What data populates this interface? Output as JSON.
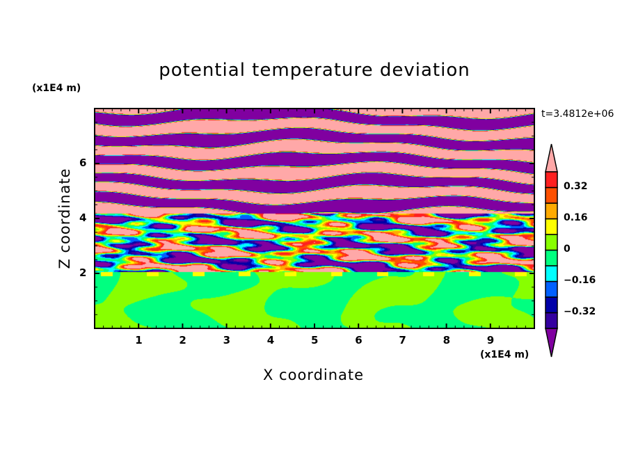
{
  "chart_data": {
    "type": "heatmap",
    "title": "potential temperature deviation",
    "xlabel": "X coordinate",
    "ylabel": "Z coordinate",
    "x_unit": "(x1E4 m)",
    "y_unit": "(x1E4 m)",
    "xlim": [
      0,
      10
    ],
    "ylim": [
      0,
      8
    ],
    "xticks": [
      1,
      2,
      3,
      4,
      5,
      6,
      7,
      8,
      9
    ],
    "xtick_labels": [
      "1",
      "2",
      "3",
      "4",
      "5",
      "6",
      "7",
      "8",
      "9"
    ],
    "yticks": [
      2,
      4,
      6
    ],
    "ytick_labels": [
      "2",
      "4",
      "6"
    ],
    "time_label": "t=3.4812e+06",
    "colorbar": {
      "levels": [
        -0.4,
        -0.32,
        -0.24,
        -0.16,
        -0.08,
        0,
        0.08,
        0.16,
        0.24,
        0.32,
        0.4
      ],
      "tick_values": [
        0.32,
        0.16,
        0,
        -0.16,
        -0.32
      ],
      "tick_labels": [
        "0.32",
        "0.16",
        "0",
        "−0.16",
        "−0.32"
      ],
      "colors": [
        "#3400a0",
        "#0000a8",
        "#0060ff",
        "#00ffff",
        "#00ff80",
        "#88ff00",
        "#ffff00",
        "#ffaa00",
        "#ff5000",
        "#ff2020"
      ],
      "over_color": "#ffa8a8",
      "under_color": "#8000a0",
      "extend": "both"
    },
    "description_regions": [
      {
        "z_range": [
          0,
          2
        ],
        "pattern": "values near 0 (green / lime cells)"
      },
      {
        "z_range": [
          2,
          4.2
        ],
        "pattern": "turbulent mixing, full color range"
      },
      {
        "z_range": [
          4.2,
          8
        ],
        "pattern": "alternating bands above 0.4 and below -0.4"
      }
    ]
  }
}
